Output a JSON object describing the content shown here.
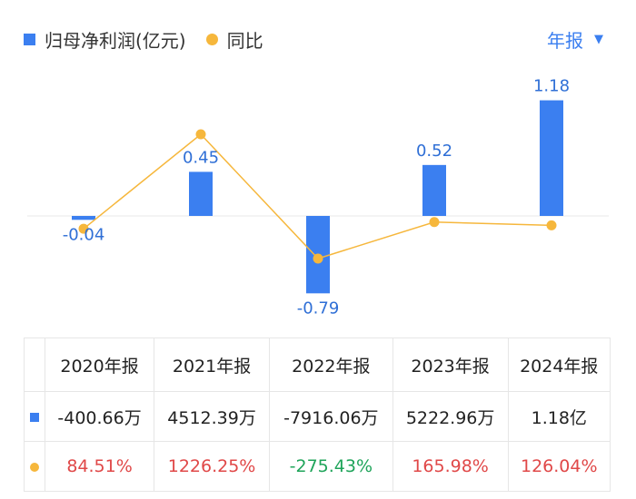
{
  "legend": {
    "bar_label": "归母净利润(亿元)",
    "line_label": "同比",
    "bar_color": "#3b7ff0",
    "line_color": "#f6b73c"
  },
  "period_selector": {
    "label": "年报",
    "icon": "caret-down-icon"
  },
  "chart_data": {
    "type": "bar",
    "categories": [
      "2020年报",
      "2021年报",
      "2022年报",
      "2023年报",
      "2024年报"
    ],
    "series": [
      {
        "name": "归母净利润(亿元)",
        "type": "bar",
        "values": [
          -0.04,
          0.45,
          -0.79,
          0.52,
          1.18
        ],
        "labels": [
          "-0.04",
          "0.45",
          "-0.79",
          "0.52",
          "1.18"
        ]
      },
      {
        "name": "同比",
        "type": "line",
        "values": [
          84.51,
          1226.25,
          -275.43,
          165.98,
          126.04
        ]
      }
    ]
  },
  "table": {
    "headers": [
      "2020年报",
      "2021年报",
      "2022年报",
      "2023年报",
      "2024年报"
    ],
    "rows": [
      {
        "icon": "bar-series-icon",
        "cells": [
          {
            "text": "-400.66万"
          },
          {
            "text": "4512.39万"
          },
          {
            "text": "-7916.06万"
          },
          {
            "text": "5222.96万"
          },
          {
            "text": "1.18亿"
          }
        ]
      },
      {
        "icon": "line-series-icon",
        "cells": [
          {
            "text": "84.51%",
            "sign": "pos"
          },
          {
            "text": "1226.25%",
            "sign": "pos"
          },
          {
            "text": "-275.43%",
            "sign": "neg"
          },
          {
            "text": "165.98%",
            "sign": "pos"
          },
          {
            "text": "126.04%",
            "sign": "pos"
          }
        ]
      }
    ]
  }
}
